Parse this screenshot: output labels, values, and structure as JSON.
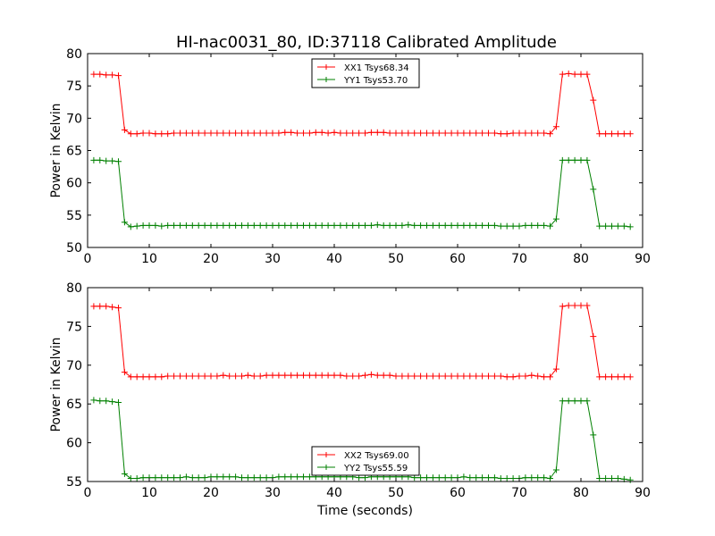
{
  "figure_title": "HI-nac0031_80, ID:37118 Calibrated Amplitude",
  "colors": {
    "xx": "#ff0000",
    "yy": "#008000"
  },
  "chart_data": [
    {
      "type": "line",
      "ylabel": "Power in Kelvin",
      "xlabel": "",
      "xlim": [
        0,
        90
      ],
      "ylim": [
        50,
        80
      ],
      "xticks": [
        0,
        10,
        20,
        30,
        40,
        50,
        60,
        70,
        80,
        90
      ],
      "yticks": [
        50,
        55,
        60,
        65,
        70,
        75,
        80
      ],
      "legend_position": "top-center",
      "grid": false,
      "x": [
        1,
        2,
        3,
        4,
        5,
        6,
        7,
        8,
        9,
        10,
        11,
        12,
        13,
        14,
        15,
        16,
        17,
        18,
        19,
        20,
        21,
        22,
        23,
        24,
        25,
        26,
        27,
        28,
        29,
        30,
        31,
        32,
        33,
        34,
        35,
        36,
        37,
        38,
        39,
        40,
        41,
        42,
        43,
        44,
        45,
        46,
        47,
        48,
        49,
        50,
        51,
        52,
        53,
        54,
        55,
        56,
        57,
        58,
        59,
        60,
        61,
        62,
        63,
        64,
        65,
        66,
        67,
        68,
        69,
        70,
        71,
        72,
        73,
        74,
        75,
        76,
        77,
        78,
        79,
        80,
        81,
        82,
        83,
        84,
        85,
        86,
        87,
        88
      ],
      "series": [
        {
          "name": "XX1 Tsys68.34",
          "color": "#ff0000",
          "values": [
            76.8,
            76.8,
            76.7,
            76.7,
            76.6,
            68.2,
            67.6,
            67.6,
            67.7,
            67.7,
            67.6,
            67.6,
            67.6,
            67.7,
            67.7,
            67.7,
            67.7,
            67.7,
            67.7,
            67.7,
            67.7,
            67.7,
            67.7,
            67.7,
            67.7,
            67.7,
            67.7,
            67.7,
            67.7,
            67.7,
            67.7,
            67.8,
            67.8,
            67.7,
            67.7,
            67.7,
            67.8,
            67.8,
            67.7,
            67.8,
            67.7,
            67.7,
            67.7,
            67.7,
            67.7,
            67.8,
            67.8,
            67.8,
            67.7,
            67.7,
            67.7,
            67.7,
            67.7,
            67.7,
            67.7,
            67.7,
            67.7,
            67.7,
            67.7,
            67.7,
            67.7,
            67.7,
            67.7,
            67.7,
            67.7,
            67.7,
            67.6,
            67.6,
            67.7,
            67.7,
            67.7,
            67.7,
            67.7,
            67.7,
            67.6,
            68.7,
            76.8,
            76.9,
            76.8,
            76.8,
            76.8,
            72.8,
            67.6,
            67.6,
            67.6,
            67.6,
            67.6,
            67.6
          ]
        },
        {
          "name": "YY1 Tsys53.70",
          "color": "#008000",
          "values": [
            63.5,
            63.5,
            63.4,
            63.4,
            63.3,
            53.9,
            53.2,
            53.3,
            53.4,
            53.4,
            53.4,
            53.3,
            53.4,
            53.4,
            53.4,
            53.4,
            53.4,
            53.4,
            53.4,
            53.4,
            53.4,
            53.4,
            53.4,
            53.4,
            53.4,
            53.4,
            53.4,
            53.4,
            53.4,
            53.4,
            53.4,
            53.4,
            53.4,
            53.4,
            53.4,
            53.4,
            53.4,
            53.4,
            53.4,
            53.4,
            53.4,
            53.4,
            53.4,
            53.4,
            53.4,
            53.4,
            53.5,
            53.4,
            53.4,
            53.4,
            53.4,
            53.5,
            53.4,
            53.4,
            53.4,
            53.4,
            53.4,
            53.4,
            53.4,
            53.4,
            53.4,
            53.4,
            53.4,
            53.4,
            53.4,
            53.4,
            53.3,
            53.3,
            53.3,
            53.3,
            53.4,
            53.4,
            53.4,
            53.4,
            53.3,
            54.4,
            63.5,
            63.5,
            63.5,
            63.5,
            63.5,
            59.0,
            53.3,
            53.3,
            53.3,
            53.3,
            53.3,
            53.2
          ]
        }
      ]
    },
    {
      "type": "line",
      "ylabel": "Power in Kelvin",
      "xlabel": "Time (seconds)",
      "xlim": [
        0,
        90
      ],
      "ylim": [
        55,
        80
      ],
      "xticks": [
        0,
        10,
        20,
        30,
        40,
        50,
        60,
        70,
        80,
        90
      ],
      "yticks": [
        55,
        60,
        65,
        70,
        75,
        80
      ],
      "legend_position": "bottom-center",
      "grid": false,
      "x": [
        1,
        2,
        3,
        4,
        5,
        6,
        7,
        8,
        9,
        10,
        11,
        12,
        13,
        14,
        15,
        16,
        17,
        18,
        19,
        20,
        21,
        22,
        23,
        24,
        25,
        26,
        27,
        28,
        29,
        30,
        31,
        32,
        33,
        34,
        35,
        36,
        37,
        38,
        39,
        40,
        41,
        42,
        43,
        44,
        45,
        46,
        47,
        48,
        49,
        50,
        51,
        52,
        53,
        54,
        55,
        56,
        57,
        58,
        59,
        60,
        61,
        62,
        63,
        64,
        65,
        66,
        67,
        68,
        69,
        70,
        71,
        72,
        73,
        74,
        75,
        76,
        77,
        78,
        79,
        80,
        81,
        82,
        83,
        84,
        85,
        86,
        87,
        88
      ],
      "series": [
        {
          "name": "XX2 Tsys69.00",
          "color": "#ff0000",
          "values": [
            77.6,
            77.6,
            77.6,
            77.5,
            77.4,
            69.1,
            68.5,
            68.5,
            68.5,
            68.5,
            68.5,
            68.5,
            68.6,
            68.6,
            68.6,
            68.6,
            68.6,
            68.6,
            68.6,
            68.6,
            68.6,
            68.7,
            68.6,
            68.6,
            68.6,
            68.7,
            68.6,
            68.6,
            68.7,
            68.7,
            68.7,
            68.7,
            68.7,
            68.7,
            68.7,
            68.7,
            68.7,
            68.7,
            68.7,
            68.7,
            68.7,
            68.6,
            68.6,
            68.6,
            68.7,
            68.8,
            68.7,
            68.7,
            68.7,
            68.6,
            68.6,
            68.6,
            68.6,
            68.6,
            68.6,
            68.6,
            68.6,
            68.6,
            68.6,
            68.6,
            68.6,
            68.6,
            68.6,
            68.6,
            68.6,
            68.6,
            68.6,
            68.5,
            68.5,
            68.6,
            68.6,
            68.7,
            68.6,
            68.5,
            68.5,
            69.5,
            77.6,
            77.7,
            77.7,
            77.7,
            77.7,
            73.7,
            68.5,
            68.5,
            68.5,
            68.5,
            68.5,
            68.5
          ]
        },
        {
          "name": "YY2 Tsys55.59",
          "color": "#008000",
          "values": [
            65.5,
            65.4,
            65.4,
            65.3,
            65.2,
            56.0,
            55.4,
            55.4,
            55.5,
            55.5,
            55.5,
            55.5,
            55.5,
            55.5,
            55.5,
            55.6,
            55.5,
            55.5,
            55.5,
            55.6,
            55.6,
            55.6,
            55.6,
            55.6,
            55.5,
            55.5,
            55.5,
            55.5,
            55.5,
            55.5,
            55.6,
            55.6,
            55.6,
            55.6,
            55.6,
            55.6,
            55.6,
            55.6,
            55.6,
            55.6,
            55.6,
            55.6,
            55.6,
            55.5,
            55.5,
            55.6,
            55.6,
            55.6,
            55.6,
            55.6,
            55.6,
            55.6,
            55.5,
            55.5,
            55.5,
            55.5,
            55.5,
            55.5,
            55.5,
            55.5,
            55.6,
            55.5,
            55.5,
            55.5,
            55.5,
            55.5,
            55.4,
            55.4,
            55.4,
            55.4,
            55.5,
            55.5,
            55.5,
            55.5,
            55.4,
            56.5,
            65.4,
            65.4,
            65.4,
            65.4,
            65.4,
            61.0,
            55.4,
            55.4,
            55.4,
            55.4,
            55.3,
            55.2
          ]
        }
      ]
    }
  ]
}
